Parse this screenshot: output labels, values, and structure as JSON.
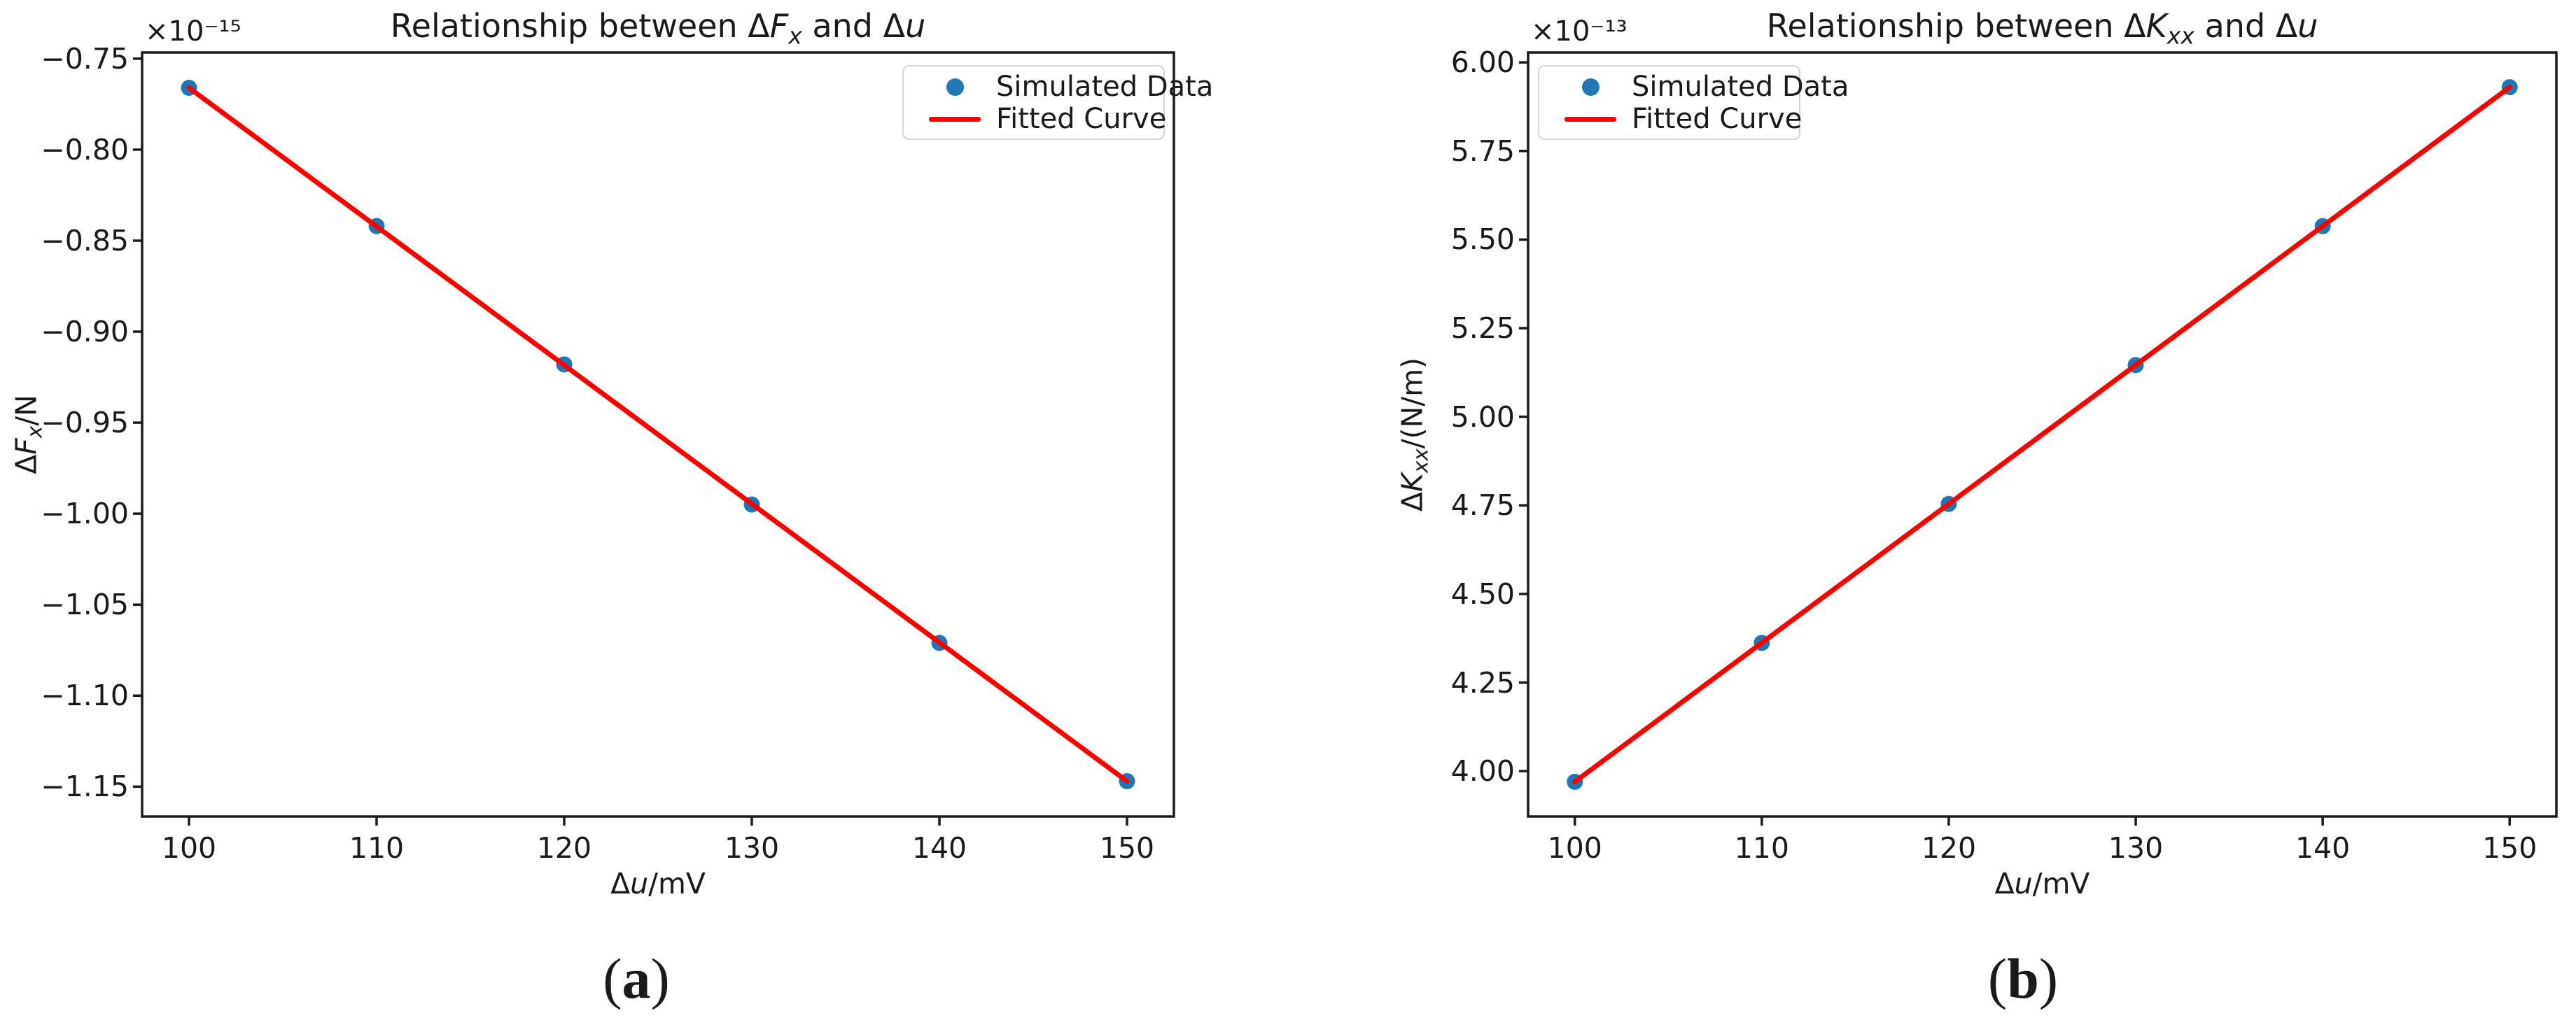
{
  "page": {
    "background": "#ffffff"
  },
  "captions": [
    {
      "open": "(",
      "letter": "a",
      "close": ")"
    },
    {
      "open": "(",
      "letter": "b",
      "close": ")"
    }
  ],
  "chart_data": [
    {
      "type": "scatter",
      "title_parts": [
        {
          "text": "Relationship between Δ",
          "style": "normal"
        },
        {
          "text": "F",
          "style": "italic"
        },
        {
          "text": "x",
          "style": "sub"
        },
        {
          "text": " and Δ",
          "style": "normal"
        },
        {
          "text": "u",
          "style": "italic"
        }
      ],
      "offset_label": "×10⁻¹⁵",
      "xlabel_parts": [
        {
          "text": "Δ",
          "style": "normal"
        },
        {
          "text": "u",
          "style": "italic"
        },
        {
          "text": "/mV",
          "style": "normal"
        }
      ],
      "ylabel_parts": [
        {
          "text": "Δ",
          "style": "normal"
        },
        {
          "text": "F",
          "style": "italic"
        },
        {
          "text": "x",
          "style": "sub"
        },
        {
          "text": "/N",
          "style": "normal"
        }
      ],
      "x": [
        100,
        110,
        120,
        130,
        140,
        150
      ],
      "y": [
        -0.766,
        -0.842,
        -0.918,
        -0.995,
        -1.071,
        -1.147
      ],
      "fit_line": {
        "x": [
          100,
          150
        ],
        "y": [
          -0.766,
          -1.147
        ]
      },
      "xlim": [
        97.5,
        152.5
      ],
      "ylim": [
        -1.1664,
        -0.7466
      ],
      "xticks": {
        "values": [
          100,
          110,
          120,
          130,
          140,
          150
        ],
        "labels": [
          "100",
          "110",
          "120",
          "130",
          "140",
          "150"
        ]
      },
      "yticks": {
        "values": [
          -0.75,
          -0.8,
          -0.85,
          -0.9,
          -0.95,
          -1.0,
          -1.05,
          -1.1,
          -1.15
        ],
        "labels": [
          "−0.75",
          "−0.80",
          "−0.85",
          "−0.90",
          "−0.95",
          "−1.00",
          "−1.05",
          "−1.10",
          "−1.15"
        ]
      },
      "legend": {
        "position": "upper-right",
        "entries": [
          {
            "marker": "dot",
            "label": "Simulated Data"
          },
          {
            "marker": "line",
            "label": "Fitted Curve"
          }
        ]
      },
      "colors": {
        "points": "#1f77b4",
        "line": "#ff0000",
        "axes": "#1a1a1a"
      }
    },
    {
      "type": "scatter",
      "title_parts": [
        {
          "text": "Relationship between Δ",
          "style": "normal"
        },
        {
          "text": "K",
          "style": "italic"
        },
        {
          "text": "xx",
          "style": "sub"
        },
        {
          "text": " and Δ",
          "style": "normal"
        },
        {
          "text": "u",
          "style": "italic"
        }
      ],
      "offset_label": "×10⁻¹³",
      "xlabel_parts": [
        {
          "text": "Δ",
          "style": "normal"
        },
        {
          "text": "u",
          "style": "italic"
        },
        {
          "text": "/mV",
          "style": "normal"
        }
      ],
      "ylabel_parts": [
        {
          "text": "Δ",
          "style": "normal"
        },
        {
          "text": "K",
          "style": "italic"
        },
        {
          "text": "xx",
          "style": "sub"
        },
        {
          "text": "/(N/m)",
          "style": "normal"
        }
      ],
      "x": [
        100,
        110,
        120,
        130,
        140,
        150
      ],
      "y": [
        3.97,
        4.362,
        4.754,
        5.146,
        5.538,
        5.93
      ],
      "fit_line": {
        "x": [
          100,
          150
        ],
        "y": [
          3.97,
          5.93
        ]
      },
      "xlim": [
        97.5,
        152.5
      ],
      "ylim": [
        3.872,
        6.028
      ],
      "xticks": {
        "values": [
          100,
          110,
          120,
          130,
          140,
          150
        ],
        "labels": [
          "100",
          "110",
          "120",
          "130",
          "140",
          "150"
        ]
      },
      "yticks": {
        "values": [
          6.0,
          5.75,
          5.5,
          5.25,
          5.0,
          4.75,
          4.5,
          4.25,
          4.0
        ],
        "labels": [
          "6.00",
          "5.75",
          "5.50",
          "5.25",
          "5.00",
          "4.75",
          "4.50",
          "4.25",
          "4.00"
        ]
      },
      "legend": {
        "position": "upper-left",
        "entries": [
          {
            "marker": "dot",
            "label": "Simulated Data"
          },
          {
            "marker": "line",
            "label": "Fitted Curve"
          }
        ]
      },
      "colors": {
        "points": "#1f77b4",
        "line": "#ff0000",
        "axes": "#1a1a1a"
      }
    }
  ]
}
